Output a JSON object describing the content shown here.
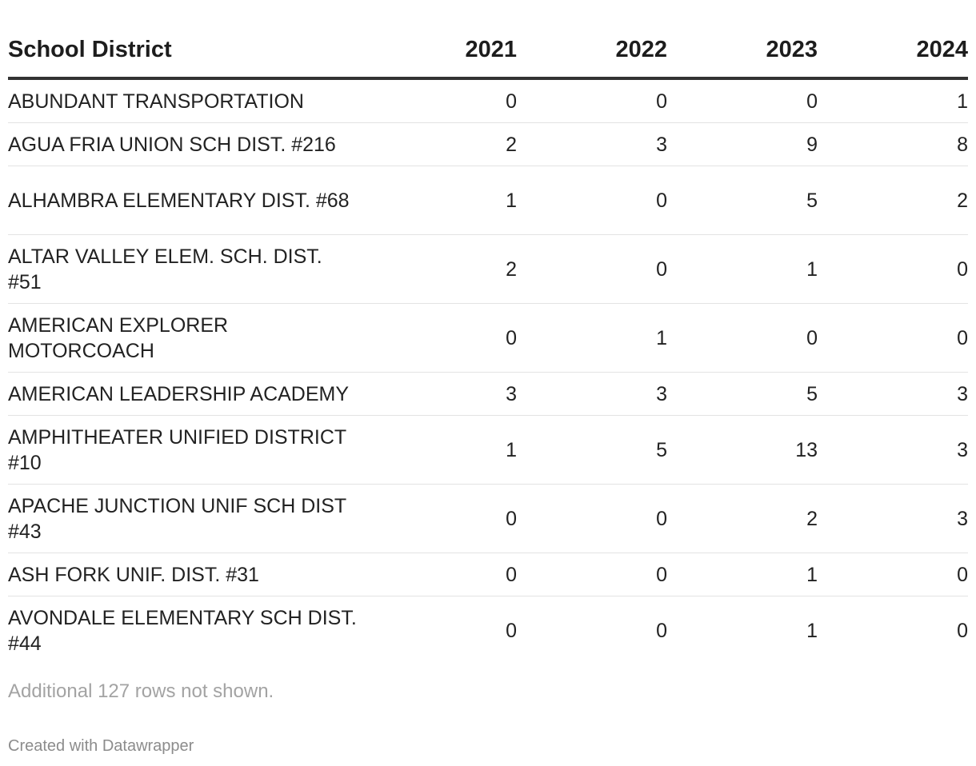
{
  "chart_data": {
    "type": "table",
    "columns": [
      "School District",
      "2021",
      "2022",
      "2023",
      "2024"
    ],
    "rows": [
      {
        "district": "ABUNDANT TRANSPORTATION",
        "values": [
          0,
          0,
          0,
          1
        ]
      },
      {
        "district": "AGUA FRIA UNION SCH DIST. #216",
        "values": [
          2,
          3,
          9,
          8
        ]
      },
      {
        "district": "ALHAMBRA ELEMENTARY DIST. #68",
        "values": [
          1,
          0,
          5,
          2
        ]
      },
      {
        "district": "ALTAR VALLEY ELEM. SCH. DIST. #51",
        "values": [
          2,
          0,
          1,
          0
        ]
      },
      {
        "district": "AMERICAN EXPLORER MOTORCOACH",
        "values": [
          0,
          1,
          0,
          0
        ]
      },
      {
        "district": "AMERICAN LEADERSHIP ACADEMY",
        "values": [
          3,
          3,
          5,
          3
        ]
      },
      {
        "district": "AMPHITHEATER UNIFIED DISTRICT #10",
        "values": [
          1,
          5,
          13,
          3
        ]
      },
      {
        "district": "APACHE JUNCTION UNIF SCH DIST #43",
        "values": [
          0,
          0,
          2,
          3
        ]
      },
      {
        "district": "ASH FORK UNIF. DIST. #31",
        "values": [
          0,
          0,
          1,
          0
        ]
      },
      {
        "district": "AVONDALE ELEMENTARY SCH DIST. #44",
        "values": [
          0,
          0,
          1,
          0
        ]
      }
    ],
    "note": "Additional 127 rows not shown.",
    "footer": "Created with Datawrapper"
  }
}
